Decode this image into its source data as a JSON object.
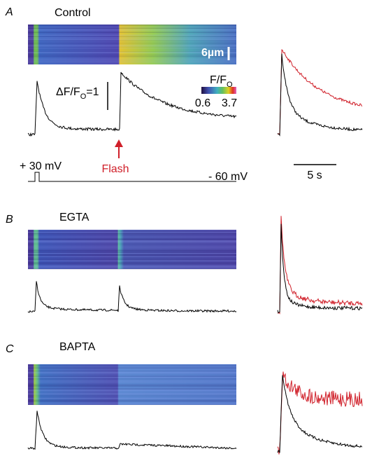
{
  "panels": [
    {
      "label": "A",
      "title": "Control"
    },
    {
      "label": "B",
      "title": "EGTA"
    },
    {
      "label": "C",
      "title": "BAPTA"
    }
  ],
  "spatial_scale": "6µm",
  "amplitude_scale": {
    "text": "ΔF/F",
    "subscript": "O",
    "suffix": "=1"
  },
  "colorbar": {
    "title": "F/F",
    "subscript": "O",
    "min_label": "0.6",
    "max_label": "3.7"
  },
  "protocol": {
    "depolarization": "+ 30 mV",
    "holding": "- 60 mV",
    "stimulus": "Flash"
  },
  "time_scale": "5 s"
}
